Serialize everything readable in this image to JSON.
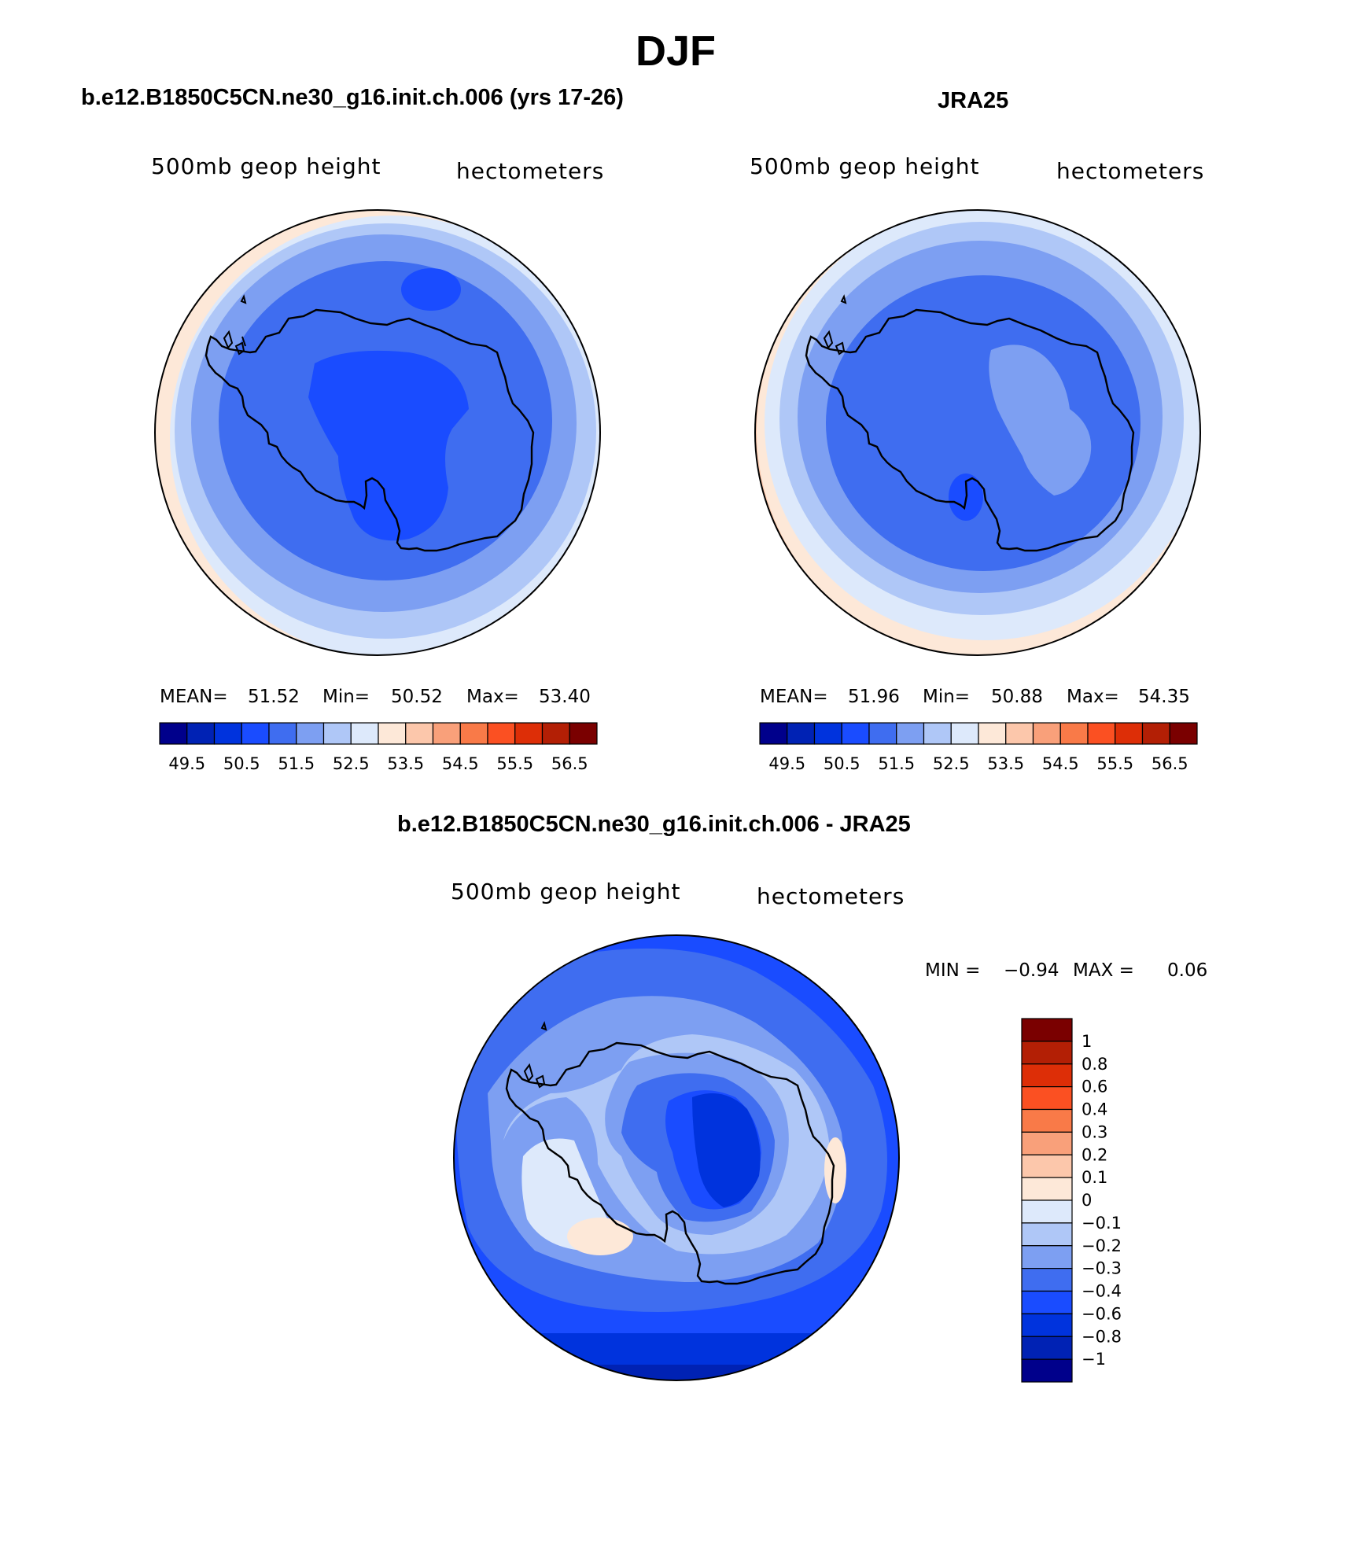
{
  "title": "DJF",
  "panels": [
    {
      "id": "model",
      "title": "b.e12.B1850C5CN.ne30_g16.init.ch.006 (yrs 17-26)",
      "variable_label": "500mb geop height",
      "units_label": "hectometers",
      "stats": {
        "mean_label": "MEAN=",
        "mean": "51.52",
        "min_label": "Min=",
        "min": "50.52",
        "max_label": "Max=",
        "max": "53.40"
      }
    },
    {
      "id": "obs",
      "title": "JRA25",
      "variable_label": "500mb geop height",
      "units_label": "hectometers",
      "stats": {
        "mean_label": "MEAN=",
        "mean": "51.96",
        "min_label": "Min=",
        "min": "50.88",
        "max_label": "Max=",
        "max": "54.35"
      }
    }
  ],
  "colorbar_abs": {
    "colors": [
      "#00008b",
      "#0022b4",
      "#0033dd",
      "#1a4cff",
      "#3f6df0",
      "#7d9ff2",
      "#afc7f7",
      "#dde9fb",
      "#fde8d8",
      "#fcc7ab",
      "#f9a07a",
      "#f97a48",
      "#fb5022",
      "#dd2e07",
      "#b31f05",
      "#7a0000"
    ],
    "tick_labels": [
      "49.5",
      "50.5",
      "51.5",
      "52.5",
      "53.5",
      "54.5",
      "55.5",
      "56.5"
    ]
  },
  "diff_panel": {
    "title": "b.e12.B1850C5CN.ne30_g16.init.ch.006 - JRA25",
    "variable_label": "500mb geop height",
    "units_label": "hectometers",
    "min_label": "MIN =",
    "min": "−0.94",
    "max_label": "MAX =",
    "max": "0.06"
  },
  "colorbar_diff": {
    "colors_top_to_bottom": [
      "#7a0000",
      "#b31f05",
      "#dd2e07",
      "#fb5022",
      "#f97a48",
      "#f9a07a",
      "#fcc7ab",
      "#fde8d8",
      "#dde9fb",
      "#afc7f7",
      "#7d9ff2",
      "#3f6df0",
      "#1a4cff",
      "#0033dd",
      "#0022b4",
      "#00008b"
    ],
    "tick_labels_top_to_bottom": [
      "1",
      "0.8",
      "0.6",
      "0.4",
      "0.3",
      "0.2",
      "0.1",
      "0",
      "−0.1",
      "−0.2",
      "−0.3",
      "−0.4",
      "−0.6",
      "−0.8",
      "−1"
    ]
  }
}
